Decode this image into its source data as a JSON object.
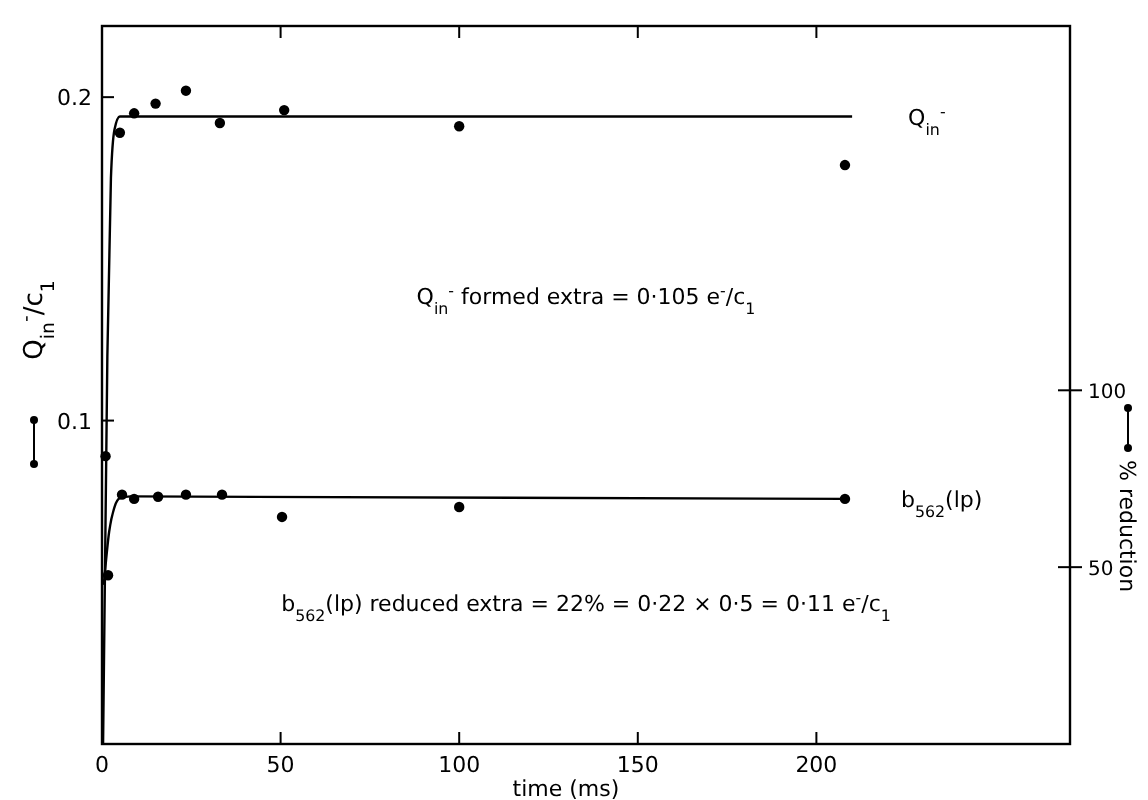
{
  "chart_data": {
    "type": "scatter",
    "xlabel": "time (ms)",
    "ylabel": "Q$_{in}$$^{-}$/c$_{1}$",
    "y2label": "% reduction",
    "xlim": [
      0,
      271
    ],
    "xticks": [
      0,
      50,
      100,
      150,
      200
    ],
    "ylim": [
      0,
      0.222
    ],
    "yticks": [
      0.1,
      0.2
    ],
    "y2lim": [
      0,
      203
    ],
    "y2ticks": [
      50,
      100
    ],
    "marker": "circle",
    "grid": false,
    "series": [
      {
        "color": "#000000",
        "x": [
          1,
          5,
          9,
          15,
          23.5,
          33,
          51,
          100,
          208
        ],
        "values": [
          0.089,
          0.189,
          0.195,
          0.198,
          0.202,
          0.192,
          0.196,
          0.191,
          0.179
        ]
      },
      {
        "type": "line",
        "name": "Q$_{in}$$^{-}$",
        "color": "#000000",
        "marker": "none",
        "x": [
          0.3,
          1.5,
          2.5,
          3.5,
          5,
          210
        ],
        "values": [
          0,
          0.12,
          0.175,
          0.19,
          0.194,
          0.194
        ]
      },
      {
        "axis": "y2",
        "color": "#000000",
        "x": [
          1.7,
          5.6,
          9,
          15.7,
          23.5,
          33.6,
          50.4,
          100,
          208
        ],
        "values": [
          47.7,
          70.5,
          69.3,
          69.9,
          70.5,
          70.5,
          64.2,
          67,
          69.3
        ]
      },
      {
        "type": "line",
        "axis": "y2",
        "name": "b$_{562}$(lp)",
        "color": "#000000",
        "marker": "none",
        "x": [
          0.5,
          2,
          3.5,
          5,
          8,
          208
        ],
        "values": [
          45,
          60,
          67,
          69.5,
          70,
          69.3
        ]
      }
    ],
    "annotations": [
      "Q$_{in}$$^{-}$ formed extra = 0·105 e$^{-}$/c$_{1}$",
      "b$_{562}$(lp) reduced extra = 22% = 0·22 × 0·5 = 0·11 e$^{-}$/c$_{1}$"
    ]
  }
}
